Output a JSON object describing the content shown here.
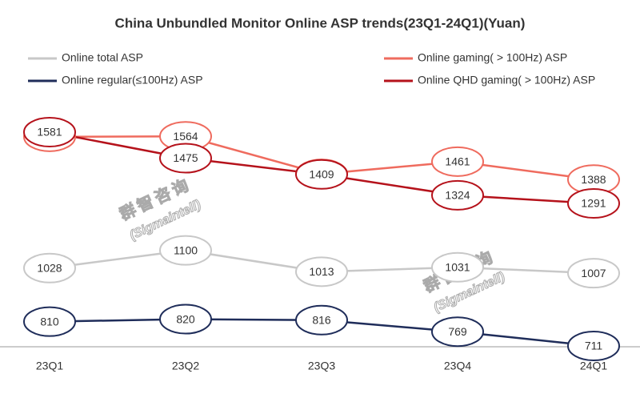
{
  "chart_data": {
    "type": "line",
    "title": "China Unbundled Monitor Online ASP trends(23Q1-24Q1)(Yuan)",
    "categories": [
      "23Q1",
      "23Q2",
      "23Q3",
      "23Q4",
      "24Q1"
    ],
    "series": [
      {
        "name": "Online total ASP",
        "color": "#c8c8c8",
        "values": [
          1028,
          1100,
          1013,
          1031,
          1007
        ]
      },
      {
        "name": "Online regular(≤100Hz)  ASP",
        "color": "#1f2d5a",
        "values": [
          810,
          820,
          816,
          769,
          711
        ]
      },
      {
        "name": "Online gaming( > 100Hz) ASP",
        "color": "#ef6b5e",
        "values": [
          1562,
          1564,
          1411,
          1461,
          1388
        ]
      },
      {
        "name": "Online QHD gaming( > 100Hz) ASP",
        "color": "#b5121b",
        "values": [
          1581,
          1475,
          1409,
          1324,
          1291
        ]
      }
    ],
    "watermark": [
      "群智咨询",
      "(Sigmaintell)"
    ]
  }
}
